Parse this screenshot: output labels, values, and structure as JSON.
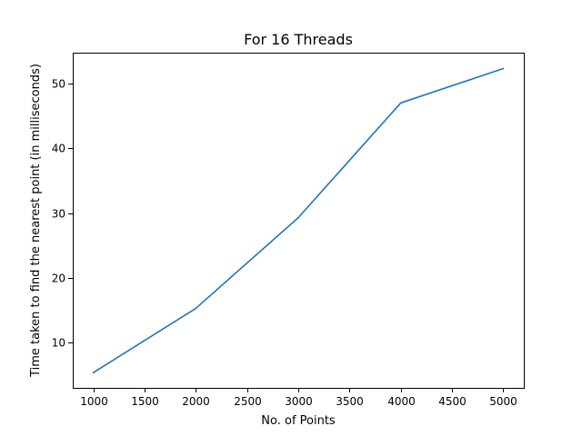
{
  "chart_data": {
    "type": "line",
    "title": "For 16 Threads",
    "xlabel": "No. of Points",
    "ylabel": "Time taken to find the nearest point (in milliseconds)",
    "x": [
      1000,
      2000,
      3000,
      4000,
      5000
    ],
    "series": [
      {
        "values": [
          5.4,
          15.3,
          29.3,
          47.0,
          52.3
        ],
        "color": "#1f77b4"
      }
    ],
    "xlim": [
      800,
      5200
    ],
    "ylim": [
      3.05,
      54.75
    ],
    "xticks": [
      1000,
      1500,
      2000,
      2500,
      3000,
      3500,
      4000,
      4500,
      5000
    ],
    "yticks": [
      10,
      20,
      30,
      40,
      50
    ],
    "grid": false,
    "legend": "none"
  }
}
